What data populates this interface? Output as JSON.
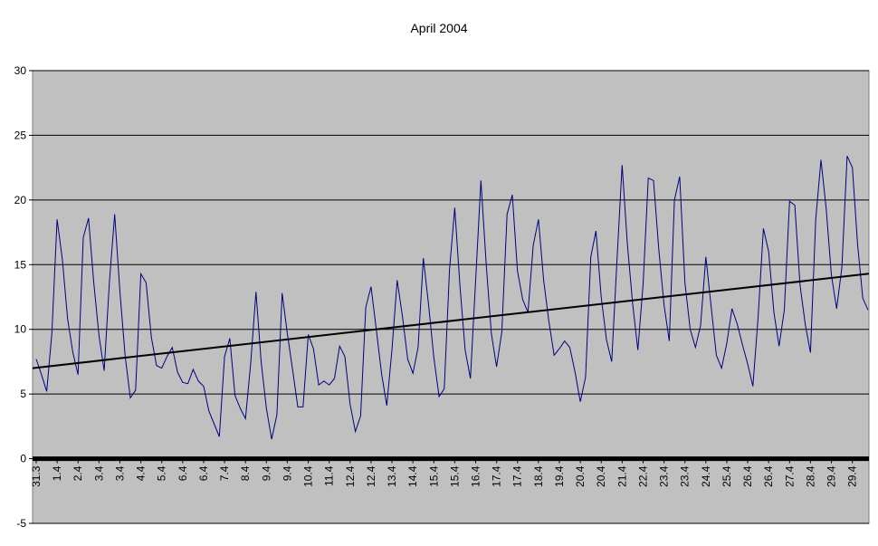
{
  "chart_data": {
    "type": "line",
    "title": "April 2004",
    "categories": [
      "31.3",
      null,
      null,
      null,
      "1.4",
      null,
      null,
      null,
      "2.4",
      null,
      null,
      null,
      "3.4",
      null,
      null,
      null,
      "3.4",
      null,
      null,
      null,
      "4.4",
      null,
      null,
      null,
      "5.4",
      null,
      null,
      null,
      "6.4",
      null,
      null,
      null,
      "6.4",
      null,
      null,
      null,
      "7.4",
      null,
      null,
      null,
      "8.4",
      null,
      null,
      null,
      "9.4",
      null,
      null,
      null,
      "9.4",
      null,
      null,
      null,
      "10.4",
      null,
      null,
      null,
      "11.4",
      null,
      null,
      null,
      "12.4",
      null,
      null,
      null,
      "12.4",
      null,
      null,
      null,
      "13.4",
      null,
      null,
      null,
      "14.4",
      null,
      null,
      null,
      "15.4",
      null,
      null,
      null,
      "15.4",
      null,
      null,
      null,
      "16.4",
      null,
      null,
      null,
      "17.4",
      null,
      null,
      null,
      "17.4",
      null,
      null,
      null,
      "18.4",
      null,
      null,
      null,
      "19.4",
      null,
      null,
      null,
      "20.4",
      null,
      null,
      null,
      "20.4",
      null,
      null,
      null,
      "21.4",
      null,
      null,
      null,
      "22.4",
      null,
      null,
      null,
      "23.4",
      null,
      null,
      null,
      "23.4",
      null,
      null,
      null,
      "24.4",
      null,
      null,
      null,
      "25.4",
      null,
      null,
      null,
      "26.4",
      null,
      null,
      null,
      "26.4",
      null,
      null,
      null,
      "27.4",
      null,
      null,
      null,
      "28.4",
      null,
      null,
      null,
      "29.4",
      null,
      null,
      null,
      "29.4",
      null,
      null,
      null
    ],
    "series": [
      {
        "color": "#000080",
        "values": [
          7.7,
          6.5,
          5.2,
          9.7,
          18.5,
          15.4,
          10.8,
          8.2,
          6.5,
          17.1,
          18.6,
          13.6,
          9.5,
          6.8,
          13.7,
          18.9,
          12.9,
          7.9,
          4.7,
          5.3,
          14.3,
          13.6,
          9.4,
          7.2,
          7.0,
          7.9,
          8.6,
          6.7,
          5.9,
          5.8,
          6.9,
          6.0,
          5.6,
          3.7,
          2.7,
          1.7,
          7.9,
          9.3,
          4.9,
          3.9,
          3.1,
          7.4,
          12.9,
          7.5,
          3.9,
          1.5,
          3.4,
          12.8,
          9.7,
          6.9,
          4.0,
          4.0,
          9.6,
          8.5,
          5.7,
          6.0,
          5.7,
          6.2,
          8.7,
          7.9,
          4.2,
          2.1,
          3.3,
          11.7,
          13.3,
          10.0,
          6.6,
          4.1,
          8.4,
          13.8,
          11.0,
          7.7,
          6.6,
          8.6,
          15.5,
          11.9,
          7.8,
          4.8,
          5.4,
          14.6,
          19.4,
          13.3,
          8.4,
          6.2,
          13.8,
          21.5,
          15.1,
          9.7,
          7.1,
          9.8,
          18.9,
          20.4,
          14.5,
          12.3,
          11.3,
          16.5,
          18.5,
          13.8,
          10.6,
          8.0,
          8.5,
          9.1,
          8.6,
          6.7,
          4.4,
          6.3,
          15.6,
          17.6,
          12.5,
          9.2,
          7.5,
          15.3,
          22.7,
          16.6,
          12.0,
          8.4,
          13.5,
          21.7,
          21.5,
          16.2,
          11.9,
          9.1,
          20.0,
          21.8,
          13.6,
          10.0,
          8.6,
          10.3,
          15.6,
          11.8,
          8.0,
          7.0,
          8.9,
          11.6,
          10.4,
          8.8,
          7.3,
          5.6,
          11.0,
          17.8,
          16.0,
          11.3,
          8.7,
          11.5,
          19.9,
          19.6,
          13.4,
          10.4,
          8.2,
          18.5,
          23.1,
          19.3,
          14.2,
          11.6,
          14.8,
          23.4,
          22.5,
          16.6,
          12.4,
          11.5
        ]
      }
    ],
    "trendline": {
      "start": 7.0,
      "end": 14.3,
      "color": "#000000"
    },
    "ylim": [
      -5,
      30
    ],
    "yticks": [
      -5,
      0,
      5,
      10,
      15,
      20,
      25,
      30
    ],
    "grid": true,
    "plot_color": "#c0c0c0"
  }
}
